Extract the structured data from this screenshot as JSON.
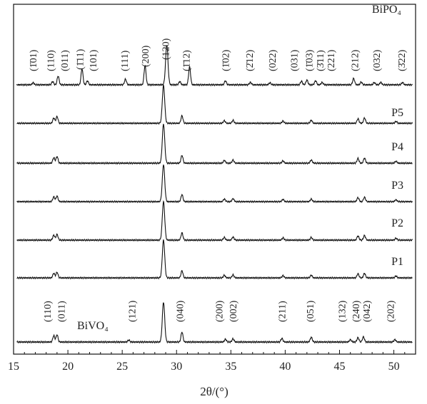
{
  "chart_data": {
    "type": "line",
    "xlabel": "2θ/(°)",
    "xlim": [
      15,
      52
    ],
    "x_ticks": [
      15,
      20,
      25,
      30,
      35,
      40,
      45,
      50
    ],
    "y_ticks_shown": false,
    "grid": false,
    "series": [
      {
        "name": "BiPO₄",
        "peaks": [
          {
            "x": 16.8,
            "h": 0.05
          },
          {
            "x": 18.6,
            "h": 0.08
          },
          {
            "x": 19.1,
            "h": 0.22
          },
          {
            "x": 21.3,
            "h": 0.4
          },
          {
            "x": 21.8,
            "h": 0.1
          },
          {
            "x": 25.3,
            "h": 0.14
          },
          {
            "x": 27.1,
            "h": 0.48
          },
          {
            "x": 29.1,
            "h": 1.0
          },
          {
            "x": 30.3,
            "h": 0.08
          },
          {
            "x": 31.2,
            "h": 0.45
          },
          {
            "x": 34.5,
            "h": 0.1
          },
          {
            "x": 36.8,
            "h": 0.06
          },
          {
            "x": 38.6,
            "h": 0.05
          },
          {
            "x": 41.5,
            "h": 0.09
          },
          {
            "x": 42.0,
            "h": 0.12
          },
          {
            "x": 42.8,
            "h": 0.1
          },
          {
            "x": 43.4,
            "h": 0.06
          },
          {
            "x": 46.3,
            "h": 0.16
          },
          {
            "x": 47.0,
            "h": 0.07
          },
          {
            "x": 48.2,
            "h": 0.06
          },
          {
            "x": 48.8,
            "h": 0.06
          },
          {
            "x": 50.8,
            "h": 0.06
          }
        ]
      },
      {
        "name": "P5",
        "peaks": [
          {
            "x": 18.7,
            "h": 0.14
          },
          {
            "x": 19.0,
            "h": 0.18
          },
          {
            "x": 28.8,
            "h": 1.0
          },
          {
            "x": 30.5,
            "h": 0.2
          },
          {
            "x": 34.4,
            "h": 0.07
          },
          {
            "x": 35.2,
            "h": 0.08
          },
          {
            "x": 39.8,
            "h": 0.06
          },
          {
            "x": 42.4,
            "h": 0.08
          },
          {
            "x": 46.7,
            "h": 0.12
          },
          {
            "x": 47.3,
            "h": 0.14
          },
          {
            "x": 50.2,
            "h": 0.05
          }
        ]
      },
      {
        "name": "P4",
        "peaks": [
          {
            "x": 18.7,
            "h": 0.14
          },
          {
            "x": 19.0,
            "h": 0.17
          },
          {
            "x": 28.8,
            "h": 1.0
          },
          {
            "x": 30.5,
            "h": 0.2
          },
          {
            "x": 34.4,
            "h": 0.07
          },
          {
            "x": 35.2,
            "h": 0.08
          },
          {
            "x": 39.8,
            "h": 0.06
          },
          {
            "x": 42.4,
            "h": 0.08
          },
          {
            "x": 46.7,
            "h": 0.12
          },
          {
            "x": 47.3,
            "h": 0.13
          },
          {
            "x": 50.2,
            "h": 0.05
          }
        ]
      },
      {
        "name": "P3",
        "peaks": [
          {
            "x": 18.7,
            "h": 0.13
          },
          {
            "x": 19.0,
            "h": 0.15
          },
          {
            "x": 28.8,
            "h": 1.0
          },
          {
            "x": 30.5,
            "h": 0.19
          },
          {
            "x": 34.4,
            "h": 0.07
          },
          {
            "x": 35.2,
            "h": 0.08
          },
          {
            "x": 39.8,
            "h": 0.06
          },
          {
            "x": 42.4,
            "h": 0.07
          },
          {
            "x": 46.7,
            "h": 0.11
          },
          {
            "x": 47.3,
            "h": 0.12
          },
          {
            "x": 50.2,
            "h": 0.05
          }
        ]
      },
      {
        "name": "P2",
        "peaks": [
          {
            "x": 18.7,
            "h": 0.13
          },
          {
            "x": 19.0,
            "h": 0.15
          },
          {
            "x": 28.8,
            "h": 1.0
          },
          {
            "x": 30.5,
            "h": 0.19
          },
          {
            "x": 34.4,
            "h": 0.07
          },
          {
            "x": 35.2,
            "h": 0.08
          },
          {
            "x": 39.8,
            "h": 0.06
          },
          {
            "x": 42.4,
            "h": 0.07
          },
          {
            "x": 46.7,
            "h": 0.11
          },
          {
            "x": 47.3,
            "h": 0.12
          },
          {
            "x": 50.2,
            "h": 0.05
          }
        ]
      },
      {
        "name": "P1",
        "peaks": [
          {
            "x": 18.7,
            "h": 0.12
          },
          {
            "x": 19.0,
            "h": 0.15
          },
          {
            "x": 28.8,
            "h": 1.0
          },
          {
            "x": 30.5,
            "h": 0.19
          },
          {
            "x": 34.4,
            "h": 0.07
          },
          {
            "x": 35.2,
            "h": 0.08
          },
          {
            "x": 39.8,
            "h": 0.06
          },
          {
            "x": 42.4,
            "h": 0.07
          },
          {
            "x": 46.7,
            "h": 0.11
          },
          {
            "x": 47.3,
            "h": 0.12
          },
          {
            "x": 50.2,
            "h": 0.05
          }
        ]
      },
      {
        "name": "BiVO₄",
        "peaks": [
          {
            "x": 18.7,
            "h": 0.16
          },
          {
            "x": 19.0,
            "h": 0.18
          },
          {
            "x": 25.6,
            "h": 0.05
          },
          {
            "x": 28.8,
            "h": 1.0
          },
          {
            "x": 30.5,
            "h": 0.25
          },
          {
            "x": 34.5,
            "h": 0.07
          },
          {
            "x": 35.2,
            "h": 0.08
          },
          {
            "x": 39.7,
            "h": 0.09
          },
          {
            "x": 42.4,
            "h": 0.12
          },
          {
            "x": 46.0,
            "h": 0.06
          },
          {
            "x": 46.7,
            "h": 0.11
          },
          {
            "x": 47.2,
            "h": 0.13
          },
          {
            "x": 50.1,
            "h": 0.06
          }
        ]
      }
    ],
    "annotations": {
      "BiPO₄": [
        {
          "x": 16.9,
          "text": "(1̄01)"
        },
        {
          "x": 18.5,
          "text": "(110)"
        },
        {
          "x": 19.8,
          "text": "(011)"
        },
        {
          "x": 21.2,
          "text": "(1̄11)"
        },
        {
          "x": 22.4,
          "text": "(101)"
        },
        {
          "x": 25.3,
          "text": "(111)"
        },
        {
          "x": 27.2,
          "text": "(200)"
        },
        {
          "x": 29.1,
          "text": "(120)"
        },
        {
          "x": 31.0,
          "text": "(1̄12)"
        },
        {
          "x": 34.6,
          "text": "(1̄02)"
        },
        {
          "x": 36.8,
          "text": "(2̄12)"
        },
        {
          "x": 38.9,
          "text": "(022)"
        },
        {
          "x": 40.9,
          "text": "(031)"
        },
        {
          "x": 42.3,
          "text": "(1̄03)"
        },
        {
          "x": 43.3,
          "text": "(3̄11)"
        },
        {
          "x": 44.3,
          "text": "(221)"
        },
        {
          "x": 46.5,
          "text": "(212)"
        },
        {
          "x": 48.5,
          "text": "(032)"
        },
        {
          "x": 50.8,
          "text": "(3̄22)"
        }
      ],
      "BiVO₄": [
        {
          "x": 18.2,
          "text": "(110)"
        },
        {
          "x": 19.5,
          "text": "(011)"
        },
        {
          "x": 26.0,
          "text": "(121)"
        },
        {
          "x": 30.4,
          "text": "(040)"
        },
        {
          "x": 34.0,
          "text": "(200)"
        },
        {
          "x": 35.3,
          "text": "(002)"
        },
        {
          "x": 39.8,
          "text": "(211)"
        },
        {
          "x": 42.4,
          "text": "(051)"
        },
        {
          "x": 45.3,
          "text": "(132)"
        },
        {
          "x": 46.6,
          "text": "(240)"
        },
        {
          "x": 47.6,
          "text": "(042)"
        },
        {
          "x": 49.8,
          "text": "(202)"
        }
      ]
    }
  }
}
